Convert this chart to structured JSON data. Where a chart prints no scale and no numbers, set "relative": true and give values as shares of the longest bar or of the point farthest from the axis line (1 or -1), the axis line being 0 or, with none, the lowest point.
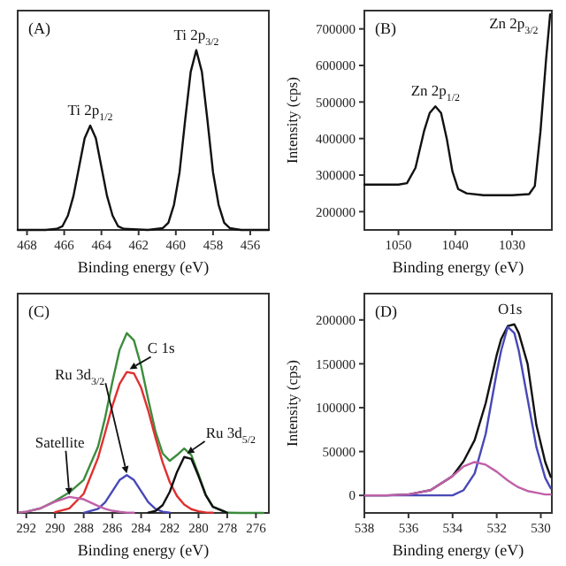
{
  "chart_data": [
    {
      "type": "line",
      "title": "(A)",
      "xlabel": "Binding energy (eV)",
      "relative": true,
      "xlim": [
        468.5,
        455
      ],
      "xticks": [
        468,
        466,
        464,
        462,
        460,
        458,
        456
      ],
      "x": [
        468.5,
        467,
        466.4,
        466.1,
        465.8,
        465.5,
        465.2,
        464.9,
        464.6,
        464.3,
        464.0,
        463.7,
        463.4,
        463.1,
        462.8,
        461.5,
        460.7,
        460.4,
        460.1,
        459.8,
        459.5,
        459.2,
        458.9,
        458.6,
        458.3,
        458.0,
        457.7,
        457.4,
        457.1,
        456.5,
        455
      ],
      "series": [
        {
          "color": "#111111",
          "values": [
            0,
            0,
            0.006,
            0.02,
            0.08,
            0.19,
            0.35,
            0.51,
            0.58,
            0.51,
            0.35,
            0.19,
            0.08,
            0.02,
            0.006,
            0,
            0.01,
            0.04,
            0.14,
            0.32,
            0.61,
            0.88,
            1,
            0.88,
            0.61,
            0.32,
            0.14,
            0.04,
            0.01,
            0,
            0
          ]
        }
      ],
      "annotations": [
        {
          "text": "Ti 2p$_{1/2}$",
          "x": 464.6,
          "y": 0.58
        },
        {
          "text": "Ti 2p$_{3/2}$",
          "x": 458.9,
          "y": 1
        }
      ]
    },
    {
      "type": "line",
      "title": "(B)",
      "xlabel": "Binding energy (eV)",
      "ylabel": "Intensity (cps)",
      "xlim": [
        1056,
        1023
      ],
      "xticks": [
        1050,
        1040,
        1030
      ],
      "ylim": [
        150000,
        750000
      ],
      "yticks": [
        200000,
        300000,
        400000,
        500000,
        600000,
        700000
      ],
      "x": [
        1056,
        1050,
        1048.5,
        1047,
        1045.5,
        1044.5,
        1043.5,
        1042.5,
        1041.5,
        1040.5,
        1039.5,
        1038,
        1035,
        1030,
        1027,
        1026,
        1025,
        1024,
        1023.3
      ],
      "series": [
        {
          "color": "#111111",
          "values": [
            274000,
            274000,
            278000,
            320000,
            420000,
            470000,
            488000,
            470000,
            400000,
            310000,
            262000,
            250000,
            245000,
            245000,
            248000,
            270000,
            420000,
            620000,
            740000
          ]
        }
      ],
      "annotations": [
        {
          "text": "Zn 2p$_{1/2}$",
          "x": 1043.5,
          "y": 488000
        },
        {
          "text": "Zn 2p$_{3/2}$",
          "x": 1023.3,
          "y": 740000
        }
      ]
    },
    {
      "type": "line",
      "title": "(C)",
      "xlabel": "Binding energy (eV)",
      "relative": true,
      "xlim": [
        292.6,
        275.1
      ],
      "xticks": [
        292,
        290,
        288,
        286,
        284,
        282,
        280,
        278,
        276
      ],
      "x": [
        292.5,
        292,
        291,
        290,
        289,
        288,
        287,
        286.5,
        286,
        285.5,
        285,
        284.5,
        284,
        283.5,
        283,
        282.5,
        282,
        281.5,
        281,
        280.5,
        280,
        279.5,
        279,
        278,
        277,
        275.5
      ],
      "series": [
        {
          "color": "#3c8c3c",
          "values": [
            0.003,
            0.007,
            0.026,
            0.066,
            0.114,
            0.184,
            0.369,
            0.532,
            0.729,
            0.907,
            1,
            0.96,
            0.818,
            0.63,
            0.453,
            0.331,
            0.29,
            0.322,
            0.358,
            0.322,
            0.214,
            0.102,
            0.035,
            0.001,
            0,
            0
          ]
        },
        {
          "color": "#e03030",
          "values": [
            null,
            null,
            null,
            0.004,
            0.025,
            0.107,
            0.307,
            0.449,
            0.596,
            0.718,
            0.784,
            0.776,
            0.697,
            0.568,
            0.419,
            0.281,
            0.171,
            0.094,
            0.047,
            0.021,
            0.009,
            0.003,
            0.001,
            null,
            null,
            null
          ]
        },
        {
          "color": "#4848b8",
          "values": [
            null,
            null,
            null,
            null,
            null,
            0.001,
            0.023,
            0.06,
            0.121,
            0.183,
            0.21,
            0.183,
            0.121,
            0.06,
            0.023,
            0.007,
            0.001,
            null,
            null,
            null,
            null,
            null,
            null,
            null,
            null,
            null
          ]
        },
        {
          "color": "#111111",
          "values": [
            null,
            null,
            null,
            null,
            null,
            null,
            null,
            null,
            null,
            null,
            null,
            null,
            null,
            0.002,
            0.011,
            0.043,
            0.118,
            0.228,
            0.311,
            0.301,
            0.205,
            0.099,
            0.034,
            0.001,
            null,
            null
          ]
        },
        {
          "color": "#c060a8",
          "values": [
            0.003,
            0.007,
            0.026,
            0.062,
            0.089,
            0.076,
            0.039,
            0.023,
            0.012,
            0.006,
            0.002,
            0.001,
            null,
            null,
            null,
            null,
            null,
            null,
            null,
            null,
            null,
            null,
            null,
            null,
            null,
            null
          ]
        }
      ],
      "annotations": [
        {
          "text": "C 1s",
          "x": 284.8,
          "y": 0.79
        },
        {
          "text": "Ru 3d$_{3/2}$",
          "x": 285,
          "y": 0.21
        },
        {
          "text": "Ru 3d$_{5/2}$",
          "x": 280.8,
          "y": 0.32
        },
        {
          "text": "Satellite",
          "x": 289,
          "y": 0.09
        }
      ]
    },
    {
      "type": "line",
      "title": "(D)",
      "xlabel": "Binding energy (eV)",
      "ylabel": "Intensity (cps)",
      "xlim": [
        538,
        529.5
      ],
      "xticks": [
        538,
        536,
        534,
        532,
        530
      ],
      "ylim": [
        -20000,
        230000
      ],
      "yticks": [
        0,
        50000,
        100000,
        150000,
        200000
      ],
      "x": [
        538,
        537,
        536,
        535,
        534,
        533.5,
        533,
        532.5,
        532,
        531.8,
        531.5,
        531.2,
        531,
        530.6,
        530.2,
        529.8,
        529.55
      ],
      "series": [
        {
          "color": "#111111",
          "values": [
            0,
            0,
            1000,
            6000,
            22000,
            39000,
            63000,
            105000,
            160000,
            178000,
            193000,
            195000,
            185000,
            150000,
            80000,
            38000,
            21000
          ]
        },
        {
          "color": "#4848b8",
          "values": [
            0,
            0,
            0,
            0,
            0,
            6000,
            25000,
            70000,
            140000,
            165000,
            192000,
            185000,
            165000,
            110000,
            55000,
            20000,
            8000
          ]
        },
        {
          "color": "#c060a8",
          "values": [
            0,
            0,
            1000,
            6000,
            22000,
            33000,
            38000,
            35000,
            27000,
            23000,
            17000,
            12000,
            9000,
            5000,
            3000,
            1000,
            1000
          ]
        }
      ],
      "annotations": [
        {
          "text": "O1s",
          "x": 531.4,
          "y": 195000
        }
      ]
    }
  ]
}
